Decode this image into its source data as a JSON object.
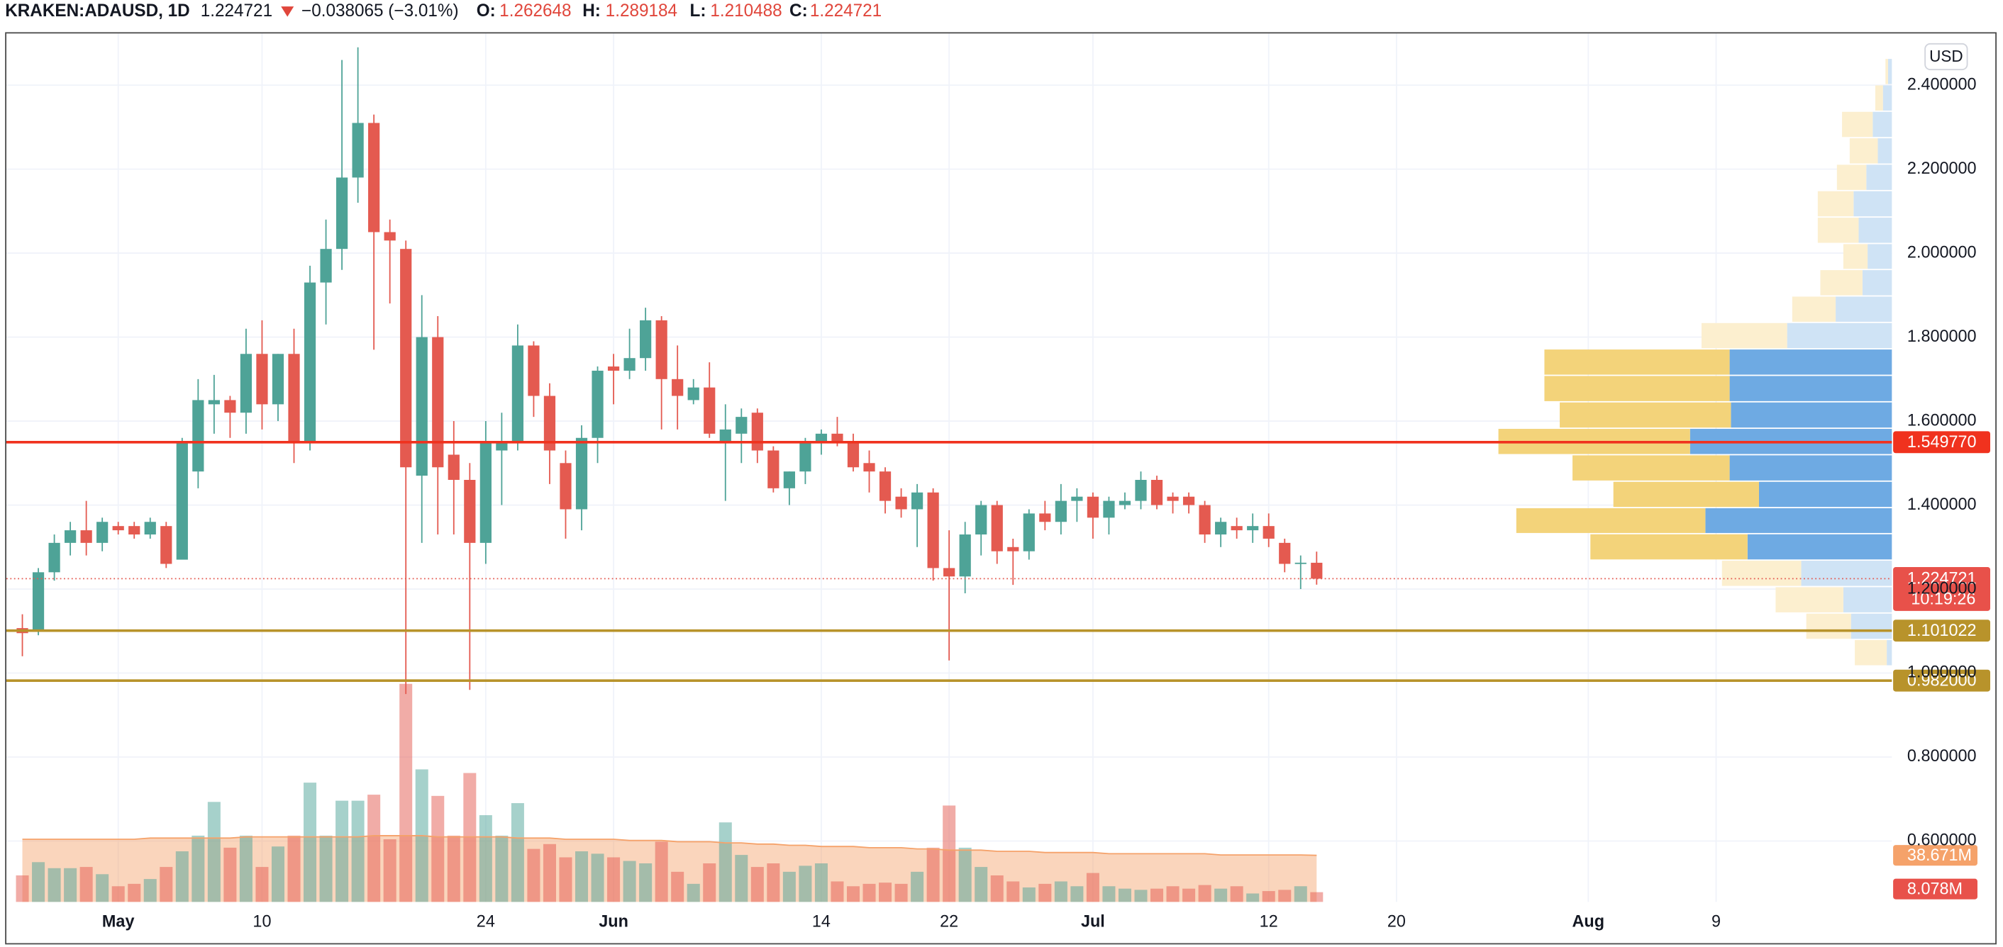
{
  "header": {
    "symbol": "KRAKEN:ADAUSD, 1D",
    "change": "−0.038065 (−3.01%)",
    "open_label": "O:",
    "high_label": "H:",
    "low_label": "L:",
    "close_label": "C:",
    "currency": "USD"
  },
  "chart_data": {
    "type": "candlestick",
    "x": [
      "04-25",
      "04-26",
      "04-27",
      "04-28",
      "04-29",
      "04-30",
      "05-01",
      "05-02",
      "05-03",
      "05-04",
      "05-05",
      "05-06",
      "05-07",
      "05-08",
      "05-09",
      "05-10",
      "05-11",
      "05-12",
      "05-13",
      "05-14",
      "05-15",
      "05-16",
      "05-17",
      "05-18",
      "05-19",
      "05-20",
      "05-21",
      "05-22",
      "05-23",
      "05-24",
      "05-25",
      "05-26",
      "05-27",
      "05-28",
      "05-29",
      "05-30",
      "05-31",
      "06-01",
      "06-02",
      "06-03",
      "06-04",
      "06-05",
      "06-06",
      "06-07",
      "06-08",
      "06-09",
      "06-10",
      "06-11",
      "06-12",
      "06-13",
      "06-14",
      "06-15",
      "06-16",
      "06-17",
      "06-18",
      "06-19",
      "06-20",
      "06-21",
      "06-22",
      "06-23",
      "06-24",
      "06-25",
      "06-26",
      "06-27",
      "06-28",
      "06-29",
      "06-30",
      "07-01",
      "07-02",
      "07-03",
      "07-04",
      "07-05",
      "07-06",
      "07-07",
      "07-08",
      "07-09",
      "07-10",
      "07-11",
      "07-12",
      "07-13",
      "07-14",
      "07-15"
    ],
    "open": [
      1.107,
      1.1,
      1.24,
      1.31,
      1.34,
      1.31,
      1.35,
      1.35,
      1.33,
      1.35,
      1.27,
      1.48,
      1.64,
      1.65,
      1.62,
      1.76,
      1.64,
      1.76,
      1.55,
      1.93,
      2.01,
      2.18,
      2.31,
      2.05,
      2.01,
      1.47,
      1.8,
      1.52,
      1.46,
      1.31,
      1.53,
      1.55,
      1.78,
      1.66,
      1.5,
      1.39,
      1.56,
      1.73,
      1.72,
      1.75,
      1.84,
      1.7,
      1.65,
      1.68,
      1.55,
      1.57,
      1.62,
      1.53,
      1.44,
      1.48,
      1.55,
      1.57,
      1.55,
      1.5,
      1.48,
      1.42,
      1.39,
      1.43,
      1.25,
      1.23,
      1.33,
      1.4,
      1.3,
      1.29,
      1.38,
      1.36,
      1.41,
      1.42,
      1.37,
      1.4,
      1.41,
      1.46,
      1.42,
      1.42,
      1.4,
      1.33,
      1.35,
      1.34,
      1.35,
      1.31,
      1.26,
      1.262648
    ],
    "high": [
      1.14,
      1.25,
      1.33,
      1.36,
      1.41,
      1.37,
      1.36,
      1.36,
      1.37,
      1.36,
      1.56,
      1.7,
      1.71,
      1.66,
      1.82,
      1.84,
      1.76,
      1.82,
      1.97,
      2.08,
      2.46,
      2.49,
      2.33,
      2.08,
      2.03,
      1.9,
      1.85,
      1.6,
      1.5,
      1.6,
      1.62,
      1.83,
      1.79,
      1.69,
      1.53,
      1.59,
      1.73,
      1.76,
      1.82,
      1.87,
      1.85,
      1.78,
      1.7,
      1.74,
      1.64,
      1.63,
      1.63,
      1.54,
      1.48,
      1.56,
      1.58,
      1.61,
      1.57,
      1.53,
      1.49,
      1.44,
      1.45,
      1.44,
      1.34,
      1.36,
      1.41,
      1.41,
      1.32,
      1.39,
      1.41,
      1.45,
      1.44,
      1.43,
      1.42,
      1.43,
      1.48,
      1.47,
      1.43,
      1.43,
      1.41,
      1.37,
      1.37,
      1.38,
      1.38,
      1.32,
      1.28,
      1.289184
    ],
    "low": [
      1.04,
      1.09,
      1.22,
      1.28,
      1.28,
      1.29,
      1.33,
      1.32,
      1.32,
      1.25,
      1.27,
      1.44,
      1.57,
      1.56,
      1.57,
      1.58,
      1.6,
      1.5,
      1.53,
      1.83,
      1.96,
      2.12,
      1.77,
      1.88,
      0.95,
      1.31,
      1.33,
      1.33,
      0.96,
      1.26,
      1.4,
      1.53,
      1.61,
      1.45,
      1.32,
      1.34,
      1.5,
      1.64,
      1.7,
      1.72,
      1.58,
      1.58,
      1.64,
      1.56,
      1.41,
      1.5,
      1.5,
      1.43,
      1.4,
      1.45,
      1.52,
      1.54,
      1.48,
      1.43,
      1.38,
      1.37,
      1.3,
      1.22,
      1.03,
      1.19,
      1.28,
      1.26,
      1.21,
      1.27,
      1.34,
      1.33,
      1.36,
      1.32,
      1.33,
      1.39,
      1.39,
      1.39,
      1.38,
      1.38,
      1.31,
      1.3,
      1.32,
      1.31,
      1.3,
      1.24,
      1.2,
      1.210488
    ],
    "close": [
      1.095,
      1.24,
      1.31,
      1.34,
      1.31,
      1.36,
      1.34,
      1.33,
      1.36,
      1.26,
      1.55,
      1.65,
      1.65,
      1.62,
      1.76,
      1.64,
      1.76,
      1.55,
      1.93,
      2.01,
      2.18,
      2.31,
      2.05,
      2.03,
      1.49,
      1.8,
      1.49,
      1.46,
      1.31,
      1.55,
      1.55,
      1.78,
      1.66,
      1.53,
      1.39,
      1.56,
      1.72,
      1.72,
      1.75,
      1.84,
      1.7,
      1.66,
      1.68,
      1.57,
      1.58,
      1.61,
      1.53,
      1.44,
      1.48,
      1.55,
      1.57,
      1.55,
      1.49,
      1.48,
      1.41,
      1.39,
      1.43,
      1.25,
      1.23,
      1.33,
      1.4,
      1.29,
      1.29,
      1.38,
      1.36,
      1.41,
      1.42,
      1.37,
      1.41,
      1.41,
      1.46,
      1.4,
      1.41,
      1.4,
      1.33,
      1.36,
      1.34,
      1.35,
      1.32,
      1.26,
      1.262786,
      1.224721
    ],
    "up_color": "#4ea397",
    "down_color": "#e45a50",
    "volume": {
      "values": [
        22,
        33,
        28,
        28,
        29,
        23,
        13,
        15,
        19,
        29,
        42,
        55,
        83,
        45,
        55,
        29,
        46,
        55,
        99,
        55,
        84,
        84,
        89,
        52,
        181,
        110,
        88,
        55,
        107,
        72,
        55,
        82,
        44,
        48,
        37,
        42,
        40,
        37,
        34,
        32,
        50,
        25,
        15,
        32,
        66,
        39,
        29,
        32,
        25,
        30,
        32,
        17,
        13,
        15,
        16,
        15,
        25,
        45,
        80,
        45,
        29,
        22,
        17,
        12,
        15,
        17,
        13,
        24,
        13,
        11,
        10,
        11,
        13,
        11,
        14,
        11,
        13,
        7,
        9,
        10,
        13,
        8.078
      ],
      "ma": [
        52,
        52,
        52,
        52,
        52,
        52,
        52,
        52,
        53,
        53,
        53,
        53,
        53,
        53,
        54,
        54,
        54,
        54,
        54,
        54,
        54,
        54,
        55,
        55,
        55,
        55,
        54,
        54,
        54,
        54,
        54,
        53,
        53,
        53,
        52,
        52,
        52,
        52,
        51,
        51,
        51,
        50,
        50,
        50,
        49,
        49,
        48,
        48,
        47,
        47,
        46,
        46,
        46,
        45,
        45,
        45,
        44,
        44,
        43,
        43,
        43,
        42,
        42,
        42,
        41,
        41,
        41,
        41,
        40,
        40,
        40,
        40,
        40,
        40,
        40,
        39,
        39,
        39,
        39,
        39,
        39,
        38.671
      ],
      "last_label": {
        "value": 8.078,
        "label": "8.078M"
      },
      "ma_label": {
        "value": 38.671,
        "label": "38.671M"
      },
      "ma_color": "#f5a26a"
    },
    "volume_profile": {
      "bins": [
        1.017,
        1.08,
        1.143,
        1.206,
        1.269,
        1.332,
        1.394,
        1.457,
        1.52,
        1.583,
        1.646,
        1.709,
        1.772,
        1.835,
        1.898,
        1.961,
        2.023,
        2.086,
        2.149,
        2.212,
        2.275,
        2.338,
        2.401,
        2.464
      ],
      "up": [
        4,
        32,
        38,
        71,
        113,
        146,
        104,
        127,
        158,
        126,
        127,
        127,
        82,
        44,
        23,
        19,
        26,
        30,
        20,
        11,
        15,
        7,
        3
      ],
      "down": [
        25,
        35,
        53,
        62,
        123,
        148,
        114,
        123,
        150,
        134,
        145,
        145,
        67,
        34,
        33,
        19,
        32,
        28,
        23,
        22,
        24,
        6,
        2
      ],
      "value_area": [
        1.269,
        1.772
      ],
      "up_color": "#6eaae3",
      "down_color": "#f3d37a",
      "up_faded": "#cfe3f5",
      "down_faded": "#fcefcf"
    },
    "price_lines": [
      {
        "value": 1.54977,
        "label": "1.549770",
        "color": "#f0321e"
      },
      {
        "value": 1.101022,
        "label": "1.101022",
        "color": "#b8932b"
      },
      {
        "value": 0.982,
        "label": "0.982000",
        "color": "#b8932b"
      }
    ],
    "countdown": "10:19:26",
    "xlim": [
      "04-24",
      "08-20"
    ],
    "xticks": [
      {
        "value": "05-01",
        "label": "May"
      },
      {
        "value": "05-10",
        "label": "10"
      },
      {
        "value": "05-24",
        "label": "24"
      },
      {
        "value": "06-01",
        "label": "Jun"
      },
      {
        "value": "06-14",
        "label": "14"
      },
      {
        "value": "06-22",
        "label": "22"
      },
      {
        "value": "07-01",
        "label": "Jul"
      },
      {
        "value": "07-12",
        "label": "12"
      },
      {
        "value": "07-20",
        "label": "20"
      },
      {
        "value": "08-01",
        "label": "Aug"
      },
      {
        "value": "08-09",
        "label": "9"
      }
    ],
    "ylim": [
      0.455,
      2.523
    ],
    "yticks": [
      {
        "value": 0.6,
        "label": "0.600000"
      },
      {
        "value": 0.8,
        "label": "0.800000"
      },
      {
        "value": 1.0,
        "label": "1.000000"
      },
      {
        "value": 1.2,
        "label": "1.200000"
      },
      {
        "value": 1.4,
        "label": "1.400000"
      },
      {
        "value": 1.6,
        "label": "1.600000"
      },
      {
        "value": 1.8,
        "label": "1.800000"
      },
      {
        "value": 2.0,
        "label": "2.000000"
      },
      {
        "value": 2.2,
        "label": "2.200000"
      },
      {
        "value": 2.4,
        "label": "2.400000"
      }
    ],
    "grid": true
  }
}
